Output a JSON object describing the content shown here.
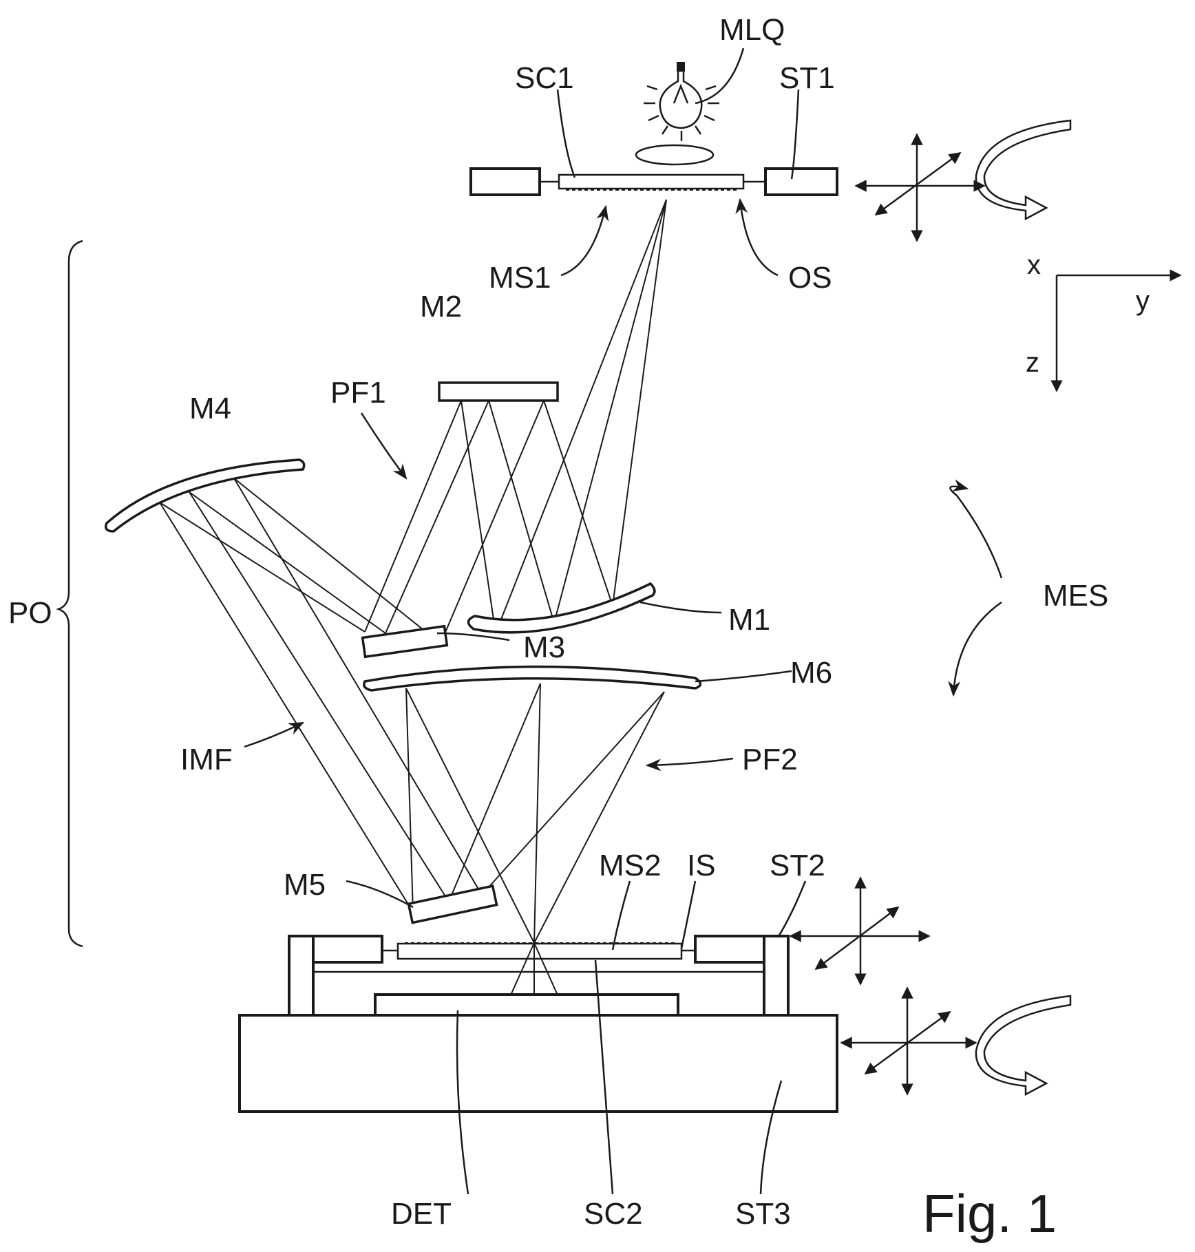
{
  "figure": {
    "caption": "Fig. 1",
    "labels": {
      "MLQ": "MLQ",
      "SC1": "SC1",
      "ST1": "ST1",
      "MS1": "MS1",
      "OS": "OS",
      "PO": "PO",
      "M1": "M1",
      "M2": "M2",
      "M3": "M3",
      "M4": "M4",
      "M5": "M5",
      "M6": "M6",
      "PF1": "PF1",
      "PF2": "PF2",
      "IMF": "IMF",
      "MES": "MES",
      "MS2": "MS2",
      "IS": "IS",
      "ST2": "ST2",
      "ST3": "ST3",
      "DET": "DET",
      "SC2": "SC2"
    },
    "axes": {
      "x": "x",
      "y": "y",
      "z": "z"
    }
  },
  "colors": {
    "ink": "#1a1a1a",
    "paper": "#ffffff"
  }
}
